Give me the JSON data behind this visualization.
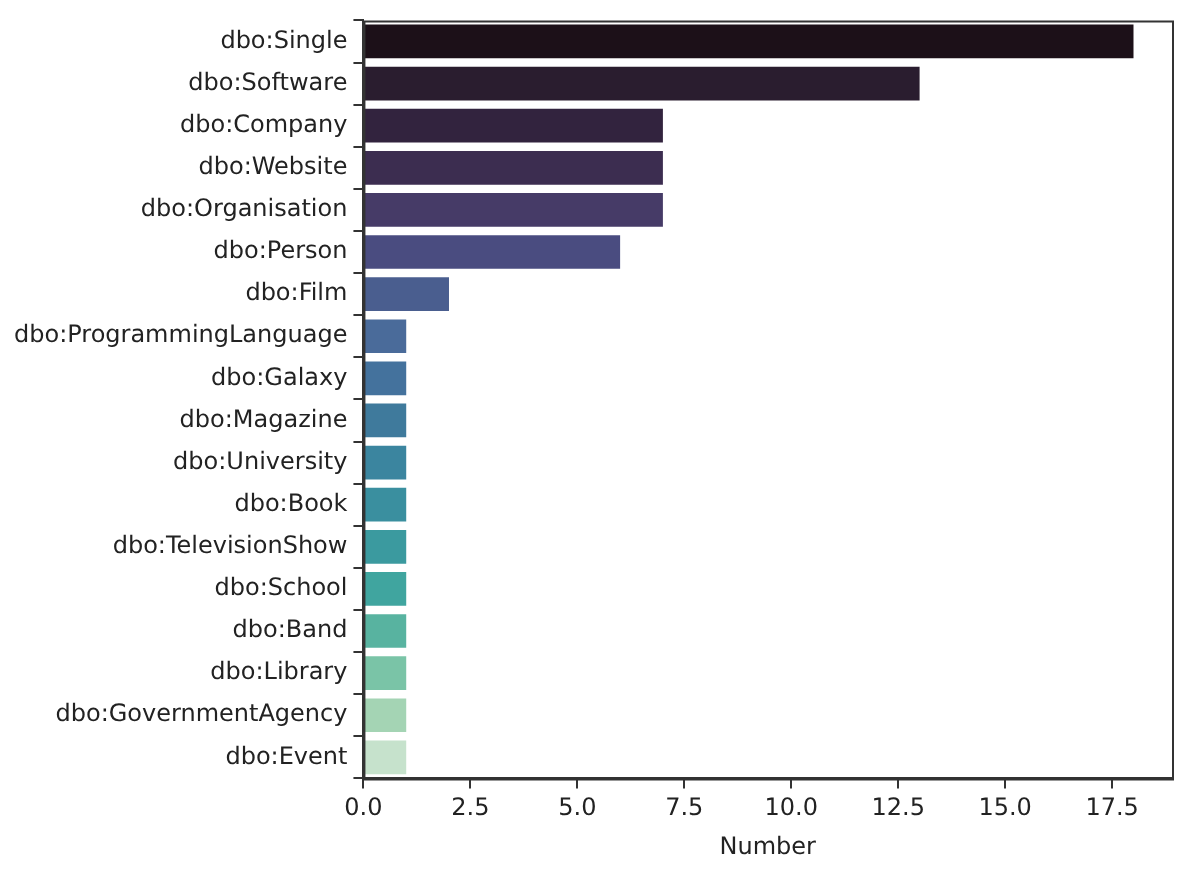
{
  "chart_data": {
    "type": "bar",
    "orientation": "horizontal",
    "xlabel": "Number",
    "categories": [
      "dbo:Single",
      "dbo:Software",
      "dbo:Company",
      "dbo:Website",
      "dbo:Organisation",
      "dbo:Person",
      "dbo:Film",
      "dbo:ProgrammingLanguage",
      "dbo:Galaxy",
      "dbo:Magazine",
      "dbo:University",
      "dbo:Book",
      "dbo:TelevisionShow",
      "dbo:School",
      "dbo:Band",
      "dbo:Library",
      "dbo:GovernmentAgency",
      "dbo:Event"
    ],
    "values": [
      18,
      13,
      7,
      7,
      7,
      6,
      2,
      1,
      1,
      1,
      1,
      1,
      1,
      1,
      1,
      1,
      1,
      1
    ],
    "colors": [
      "#1c1018",
      "#2a1d2f",
      "#32233e",
      "#3c2d50",
      "#463b67",
      "#4a4c80",
      "#4a5e8f",
      "#4a6b9a",
      "#44729d",
      "#3f7a9c",
      "#3b859f",
      "#3a8f9f",
      "#3b9a9f",
      "#40a59f",
      "#58b3a0",
      "#7ac4a7",
      "#a4d4b4",
      "#c6e2cc"
    ],
    "xlim": [
      0,
      18.9
    ],
    "xticks": [
      {
        "value": 0,
        "label": "0.0"
      },
      2.5,
      {
        "value": 5,
        "label": "5.0"
      },
      7.5,
      {
        "value": 10,
        "label": "10.0"
      },
      12.5,
      {
        "value": 15,
        "label": "15.0"
      },
      17.5
    ],
    "grid": false,
    "legend": false
  }
}
